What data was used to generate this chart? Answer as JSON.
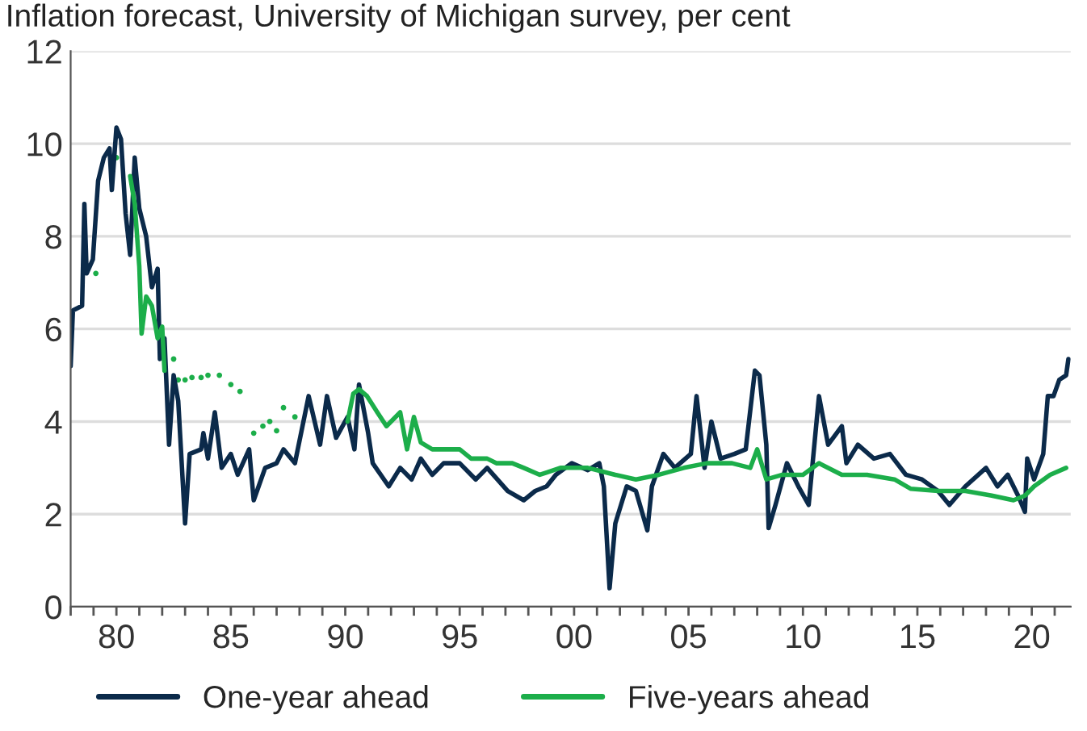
{
  "chart_data": {
    "type": "line",
    "title": "Inflation forecast, University of Michigan survey, per cent",
    "xlim": [
      1978,
      2021.7
    ],
    "ylim": [
      0,
      12
    ],
    "yticks": [
      0,
      2,
      4,
      6,
      8,
      10,
      12
    ],
    "xticks": [
      {
        "value": 1978,
        "label": null
      },
      {
        "value": 1979,
        "label": null
      },
      {
        "value": 1980,
        "label": "80"
      },
      {
        "value": 1981,
        "label": null
      },
      {
        "value": 1982,
        "label": null
      },
      {
        "value": 1983,
        "label": null
      },
      {
        "value": 1984,
        "label": null
      },
      {
        "value": 1985,
        "label": "85"
      },
      {
        "value": 1986,
        "label": null
      },
      {
        "value": 1987,
        "label": null
      },
      {
        "value": 1988,
        "label": null
      },
      {
        "value": 1989,
        "label": null
      },
      {
        "value": 1990,
        "label": "90"
      },
      {
        "value": 1991,
        "label": null
      },
      {
        "value": 1992,
        "label": null
      },
      {
        "value": 1993,
        "label": null
      },
      {
        "value": 1994,
        "label": null
      },
      {
        "value": 1995,
        "label": "95"
      },
      {
        "value": 1996,
        "label": null
      },
      {
        "value": 1997,
        "label": null
      },
      {
        "value": 1998,
        "label": null
      },
      {
        "value": 1999,
        "label": null
      },
      {
        "value": 2000,
        "label": "00"
      },
      {
        "value": 2001,
        "label": null
      },
      {
        "value": 2002,
        "label": null
      },
      {
        "value": 2003,
        "label": null
      },
      {
        "value": 2004,
        "label": null
      },
      {
        "value": 2005,
        "label": "05"
      },
      {
        "value": 2006,
        "label": null
      },
      {
        "value": 2007,
        "label": null
      },
      {
        "value": 2008,
        "label": null
      },
      {
        "value": 2009,
        "label": null
      },
      {
        "value": 2010,
        "label": "10"
      },
      {
        "value": 2011,
        "label": null
      },
      {
        "value": 2012,
        "label": null
      },
      {
        "value": 2013,
        "label": null
      },
      {
        "value": 2014,
        "label": null
      },
      {
        "value": 2015,
        "label": "15"
      },
      {
        "value": 2016,
        "label": null
      },
      {
        "value": 2017,
        "label": null
      },
      {
        "value": 2018,
        "label": null
      },
      {
        "value": 2019,
        "label": null
      },
      {
        "value": 2020,
        "label": "20"
      },
      {
        "value": 2021,
        "label": null
      }
    ],
    "grid": "y",
    "legend": "bottom",
    "line_style": "solid",
    "series": [
      {
        "name": "One-year ahead",
        "color": "#0b2a4a",
        "x": [
          1978.0,
          1978.1,
          1978.5,
          1978.6,
          1978.7,
          1978.97,
          1979.2,
          1979.45,
          1979.7,
          1979.8,
          1980.0,
          1980.2,
          1980.4,
          1980.6,
          1980.8,
          1981.0,
          1981.3,
          1981.55,
          1981.8,
          1981.9,
          1982.1,
          1982.3,
          1982.5,
          1982.7,
          1983.0,
          1983.2,
          1983.7,
          1983.8,
          1984.0,
          1984.3,
          1984.6,
          1985.0,
          1985.3,
          1985.8,
          1986.0,
          1986.5,
          1987.0,
          1987.3,
          1987.8,
          1988.4,
          1988.9,
          1989.2,
          1989.6,
          1990.1,
          1990.4,
          1990.6,
          1991.0,
          1991.2,
          1991.9,
          1992.4,
          1992.9,
          1993.3,
          1993.8,
          1994.3,
          1995.0,
          1995.7,
          1996.2,
          1997.1,
          1997.8,
          1998.3,
          1998.8,
          1999.2,
          1999.9,
          2000.6,
          2001.1,
          2001.3,
          2001.55,
          2001.8,
          2002.3,
          2002.7,
          2003.2,
          2003.4,
          2003.9,
          2004.4,
          2005.1,
          2005.35,
          2005.7,
          2006.0,
          2006.4,
          2007.0,
          2007.5,
          2007.9,
          2008.1,
          2008.4,
          2008.5,
          2008.8,
          2009.3,
          2009.8,
          2010.25,
          2010.7,
          2011.1,
          2011.7,
          2011.9,
          2012.4,
          2013.1,
          2013.8,
          2014.5,
          2015.2,
          2015.9,
          2016.4,
          2017.1,
          2018.0,
          2018.5,
          2018.95,
          2019.4,
          2019.7,
          2019.8,
          2020.1,
          2020.5,
          2020.7,
          2020.95,
          2021.2,
          2021.5,
          2021.6
        ],
        "values": [
          5.2,
          6.4,
          6.5,
          8.7,
          7.2,
          7.5,
          9.2,
          9.7,
          9.9,
          9.0,
          10.35,
          10.1,
          8.5,
          7.6,
          9.7,
          8.6,
          8.0,
          6.9,
          7.3,
          5.35,
          5.8,
          3.5,
          5.0,
          4.45,
          1.8,
          3.3,
          3.4,
          3.75,
          3.2,
          4.2,
          3.0,
          3.3,
          2.85,
          3.4,
          2.3,
          3.0,
          3.1,
          3.4,
          3.1,
          4.55,
          3.5,
          4.55,
          3.65,
          4.1,
          3.4,
          4.8,
          3.75,
          3.1,
          2.6,
          3.0,
          2.75,
          3.2,
          2.85,
          3.1,
          3.1,
          2.75,
          3.0,
          2.5,
          2.3,
          2.5,
          2.6,
          2.85,
          3.1,
          2.95,
          3.1,
          2.6,
          0.4,
          1.8,
          2.6,
          2.5,
          1.65,
          2.6,
          3.3,
          3.0,
          3.3,
          4.55,
          3.0,
          4.0,
          3.2,
          3.3,
          3.4,
          5.1,
          5.0,
          3.5,
          1.7,
          2.2,
          3.1,
          2.6,
          2.2,
          4.55,
          3.5,
          3.9,
          3.1,
          3.5,
          3.2,
          3.3,
          2.85,
          2.75,
          2.5,
          2.2,
          2.6,
          3.0,
          2.6,
          2.85,
          2.4,
          2.05,
          3.2,
          2.75,
          3.3,
          4.55,
          4.55,
          4.9,
          5.0,
          5.35
        ]
      },
      {
        "name": "Five-years ahead",
        "color": "#1cae4a",
        "x": [
          1980.6,
          1980.8,
          1981.0,
          1981.1,
          1981.3,
          1981.55,
          1981.8,
          1982.0,
          1982.1,
          1986.0,
          1990.1,
          1990.35,
          1990.6,
          1990.95,
          1991.4,
          1991.8,
          1992.4,
          1992.7,
          1993.0,
          1993.3,
          1993.8,
          1994.3,
          1995.0,
          1995.5,
          1996.2,
          1996.6,
          1997.3,
          1997.8,
          1998.5,
          1998.8,
          1999.4,
          2000.6,
          2001.8,
          2002.7,
          2003.7,
          2004.8,
          2005.8,
          2006.9,
          2007.7,
          2008.0,
          2008.4,
          2009.1,
          2010.0,
          2010.7,
          2011.7,
          2012.8,
          2014.0,
          2014.7,
          2015.9,
          2017.1,
          2018.25,
          2019.2,
          2019.7,
          2020.1,
          2020.8,
          2021.5
        ],
        "values": [
          9.3,
          8.7,
          7.35,
          5.9,
          6.7,
          6.5,
          5.8,
          6.05,
          5.1,
          null,
          4.0,
          4.6,
          4.7,
          4.55,
          4.2,
          3.9,
          4.2,
          3.4,
          4.1,
          3.55,
          3.4,
          3.4,
          3.4,
          3.2,
          3.2,
          3.1,
          3.1,
          3.0,
          2.85,
          2.9,
          3.0,
          3.0,
          2.85,
          2.75,
          2.85,
          3.0,
          3.1,
          3.1,
          3.0,
          3.4,
          2.75,
          2.85,
          2.85,
          3.1,
          2.85,
          2.85,
          2.75,
          2.55,
          2.5,
          2.5,
          2.4,
          2.3,
          2.4,
          2.6,
          2.85,
          3.0
        ]
      },
      {
        "type": "scatter",
        "color": "#1cae4a",
        "marker": "circle",
        "x": [
          1979.1,
          1980.0,
          1982.5,
          1982.7,
          1983.0,
          1983.3,
          1983.7,
          1984.0,
          1984.5,
          1985.0,
          1985.4,
          1986.0,
          1986.4,
          1986.7,
          1987.0,
          1987.3,
          1987.8
        ],
        "values": [
          7.2,
          9.7,
          5.35,
          4.9,
          4.9,
          4.95,
          4.95,
          5.0,
          5.0,
          4.8,
          4.65,
          3.75,
          3.9,
          4.0,
          3.8,
          4.3,
          4.1
        ]
      }
    ]
  }
}
